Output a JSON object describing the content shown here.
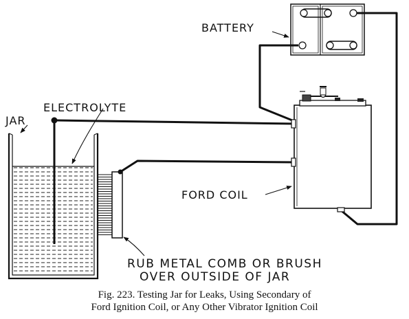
{
  "labels": {
    "battery": "BATTERY",
    "electrolyte": "ELECTROLYTE",
    "jar": "JAR",
    "ford_coil": "FORD COIL",
    "rub_line1": "RUB METAL COMB OR BRUSH",
    "rub_line2": "OVER OUTSIDE OF JAR"
  },
  "caption": {
    "line1": "Fig. 223.  Testing Jar for Leaks, Using Secondary of",
    "line2": "Ford Ignition Coil, or Any Other Vibrator Ignition Coil"
  }
}
